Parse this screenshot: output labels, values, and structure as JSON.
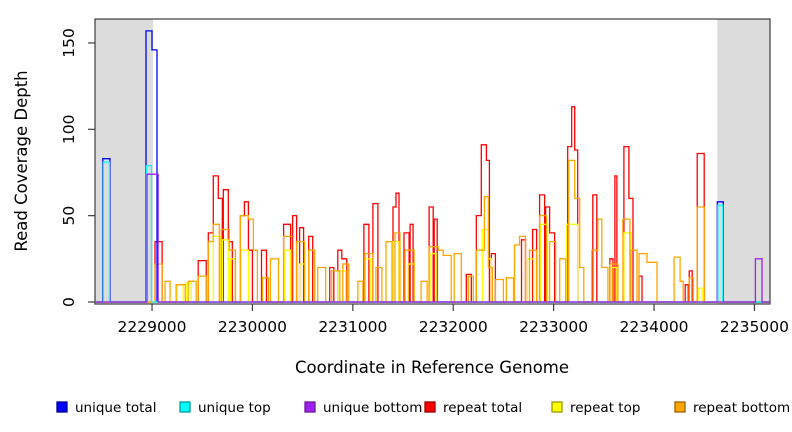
{
  "chart_data": {
    "type": "line",
    "line_style": "step-coverage-outline",
    "title": "",
    "xlabel": "Coordinate in Reference Genome",
    "ylabel": "Read Coverage Depth",
    "xlim": [
      2228432,
      2235155
    ],
    "ylim": [
      0,
      164
    ],
    "x_ticks": [
      2229000,
      2230000,
      2231000,
      2232000,
      2233000,
      2234000,
      2235000
    ],
    "y_ticks": [
      0,
      50,
      100,
      150
    ],
    "grid": false,
    "legend_position": "bottom",
    "highlight_color": "#DCDCDC",
    "highlight_regions": [
      {
        "start": 2228432,
        "end": 2229010
      },
      {
        "start": 2234630,
        "end": 2235155
      }
    ],
    "draw_order": [
      3,
      4,
      5,
      0,
      1,
      2
    ],
    "series": [
      {
        "name": "unique total",
        "color": "#0000FF",
        "border_color": "#000099",
        "segments": [
          [
            2228510,
            2228580,
            83
          ],
          [
            2228940,
            2229000,
            157
          ],
          [
            2229000,
            2229050,
            146
          ],
          [
            2234630,
            2234690,
            58
          ]
        ]
      },
      {
        "name": "unique top",
        "color": "#00FFFF",
        "border_color": "#009999",
        "segments": [
          [
            2228515,
            2228575,
            81
          ],
          [
            2228945,
            2228995,
            79
          ],
          [
            2234635,
            2234685,
            56
          ]
        ]
      },
      {
        "name": "unique bottom",
        "color": "#A020F0",
        "border_color": "#6A1B9A",
        "segments": [
          [
            2228950,
            2229060,
            74
          ],
          [
            2235010,
            2235075,
            25
          ]
        ]
      },
      {
        "name": "repeat total",
        "color": "#FF0000",
        "border_color": "#990000",
        "segments": [
          [
            2229030,
            2229100,
            35
          ],
          [
            2229460,
            2229540,
            24
          ],
          [
            2229560,
            2229610,
            40
          ],
          [
            2229610,
            2229660,
            73
          ],
          [
            2229660,
            2229700,
            60
          ],
          [
            2229710,
            2229760,
            65
          ],
          [
            2229760,
            2229800,
            35
          ],
          [
            2229880,
            2229920,
            50
          ],
          [
            2229920,
            2229960,
            58
          ],
          [
            2229960,
            2230000,
            30
          ],
          [
            2230090,
            2230140,
            30
          ],
          [
            2230310,
            2230380,
            45
          ],
          [
            2230400,
            2230440,
            50
          ],
          [
            2230470,
            2230510,
            43
          ],
          [
            2230560,
            2230600,
            38
          ],
          [
            2230770,
            2230810,
            20
          ],
          [
            2230850,
            2230890,
            30
          ],
          [
            2230890,
            2230940,
            25
          ],
          [
            2231110,
            2231160,
            45
          ],
          [
            2231200,
            2231250,
            57
          ],
          [
            2231400,
            2231430,
            55
          ],
          [
            2231430,
            2231460,
            63
          ],
          [
            2231510,
            2231560,
            40
          ],
          [
            2231570,
            2231600,
            45
          ],
          [
            2231760,
            2231800,
            55
          ],
          [
            2231810,
            2231840,
            48
          ],
          [
            2232130,
            2232180,
            16
          ],
          [
            2232230,
            2232280,
            50
          ],
          [
            2232280,
            2232330,
            91
          ],
          [
            2232330,
            2232360,
            82
          ],
          [
            2232380,
            2232420,
            28
          ],
          [
            2232680,
            2232720,
            36
          ],
          [
            2232790,
            2232830,
            42
          ],
          [
            2232860,
            2232910,
            62
          ],
          [
            2232920,
            2232960,
            55
          ],
          [
            2232960,
            2233010,
            40
          ],
          [
            2233140,
            2233180,
            90
          ],
          [
            2233180,
            2233210,
            113
          ],
          [
            2233210,
            2233240,
            88
          ],
          [
            2233390,
            2233430,
            62
          ],
          [
            2233560,
            2233590,
            25
          ],
          [
            2233610,
            2233630,
            73
          ],
          [
            2233700,
            2233750,
            90
          ],
          [
            2233750,
            2233790,
            60
          ],
          [
            2233850,
            2233880,
            15
          ],
          [
            2234310,
            2234340,
            10
          ],
          [
            2234350,
            2234380,
            18
          ],
          [
            2234430,
            2234500,
            86
          ]
        ]
      },
      {
        "name": "repeat top",
        "color": "#FFFF00",
        "border_color": "#999900",
        "segments": [
          [
            2229250,
            2229310,
            10
          ],
          [
            2229340,
            2229390,
            11
          ],
          [
            2229610,
            2229680,
            38
          ],
          [
            2229700,
            2229760,
            36
          ],
          [
            2229780,
            2229830,
            25
          ],
          [
            2229880,
            2229960,
            30
          ],
          [
            2230320,
            2230380,
            30
          ],
          [
            2230470,
            2230520,
            22
          ],
          [
            2230850,
            2230930,
            18
          ],
          [
            2231120,
            2231180,
            25
          ],
          [
            2231400,
            2231460,
            35
          ],
          [
            2231550,
            2231610,
            22
          ],
          [
            2231770,
            2231830,
            28
          ],
          [
            2232290,
            2232350,
            42
          ],
          [
            2232350,
            2232380,
            25
          ],
          [
            2232740,
            2232800,
            25
          ],
          [
            2232870,
            2232940,
            45
          ],
          [
            2233130,
            2233240,
            45
          ],
          [
            2233580,
            2233630,
            20
          ],
          [
            2233700,
            2233770,
            40
          ],
          [
            2234440,
            2234480,
            8
          ]
        ]
      },
      {
        "name": "repeat bottom",
        "color": "#FFA500",
        "border_color": "#996300",
        "segments": [
          [
            2229030,
            2229100,
            22
          ],
          [
            2229130,
            2229180,
            12
          ],
          [
            2229240,
            2229330,
            10
          ],
          [
            2229360,
            2229440,
            12
          ],
          [
            2229460,
            2229540,
            15
          ],
          [
            2229560,
            2229610,
            35
          ],
          [
            2229610,
            2229670,
            45
          ],
          [
            2229690,
            2229770,
            42
          ],
          [
            2229770,
            2229830,
            30
          ],
          [
            2229880,
            2229960,
            50
          ],
          [
            2229960,
            2230010,
            48
          ],
          [
            2230010,
            2230050,
            30
          ],
          [
            2230100,
            2230160,
            14
          ],
          [
            2230180,
            2230260,
            25
          ],
          [
            2230310,
            2230390,
            38
          ],
          [
            2230440,
            2230520,
            35
          ],
          [
            2230560,
            2230620,
            30
          ],
          [
            2230650,
            2230730,
            20
          ],
          [
            2230790,
            2230870,
            18
          ],
          [
            2230900,
            2230960,
            22
          ],
          [
            2231050,
            2231100,
            12
          ],
          [
            2231120,
            2231200,
            28
          ],
          [
            2231230,
            2231290,
            20
          ],
          [
            2231330,
            2231390,
            35
          ],
          [
            2231420,
            2231470,
            40
          ],
          [
            2231520,
            2231610,
            30
          ],
          [
            2231680,
            2231740,
            12
          ],
          [
            2231760,
            2231850,
            32
          ],
          [
            2231850,
            2231900,
            30
          ],
          [
            2231900,
            2231980,
            27
          ],
          [
            2232010,
            2232080,
            28
          ],
          [
            2232150,
            2232200,
            15
          ],
          [
            2232230,
            2232310,
            30
          ],
          [
            2232310,
            2232350,
            61
          ],
          [
            2232350,
            2232390,
            20
          ],
          [
            2232420,
            2232500,
            13
          ],
          [
            2232530,
            2232600,
            14
          ],
          [
            2232610,
            2232660,
            33
          ],
          [
            2232660,
            2232720,
            38
          ],
          [
            2232760,
            2232830,
            30
          ],
          [
            2232860,
            2232930,
            50
          ],
          [
            2232960,
            2233020,
            35
          ],
          [
            2233060,
            2233120,
            25
          ],
          [
            2233150,
            2233210,
            82
          ],
          [
            2233210,
            2233260,
            60
          ],
          [
            2233260,
            2233300,
            20
          ],
          [
            2233380,
            2233440,
            30
          ],
          [
            2233440,
            2233480,
            48
          ],
          [
            2233480,
            2233540,
            20
          ],
          [
            2233560,
            2233640,
            22
          ],
          [
            2233690,
            2233760,
            48
          ],
          [
            2233770,
            2233830,
            30
          ],
          [
            2233850,
            2233930,
            28
          ],
          [
            2233930,
            2234030,
            23
          ],
          [
            2234200,
            2234260,
            26
          ],
          [
            2234260,
            2234290,
            12
          ],
          [
            2234350,
            2234390,
            14
          ],
          [
            2234430,
            2234500,
            55
          ]
        ]
      }
    ]
  }
}
